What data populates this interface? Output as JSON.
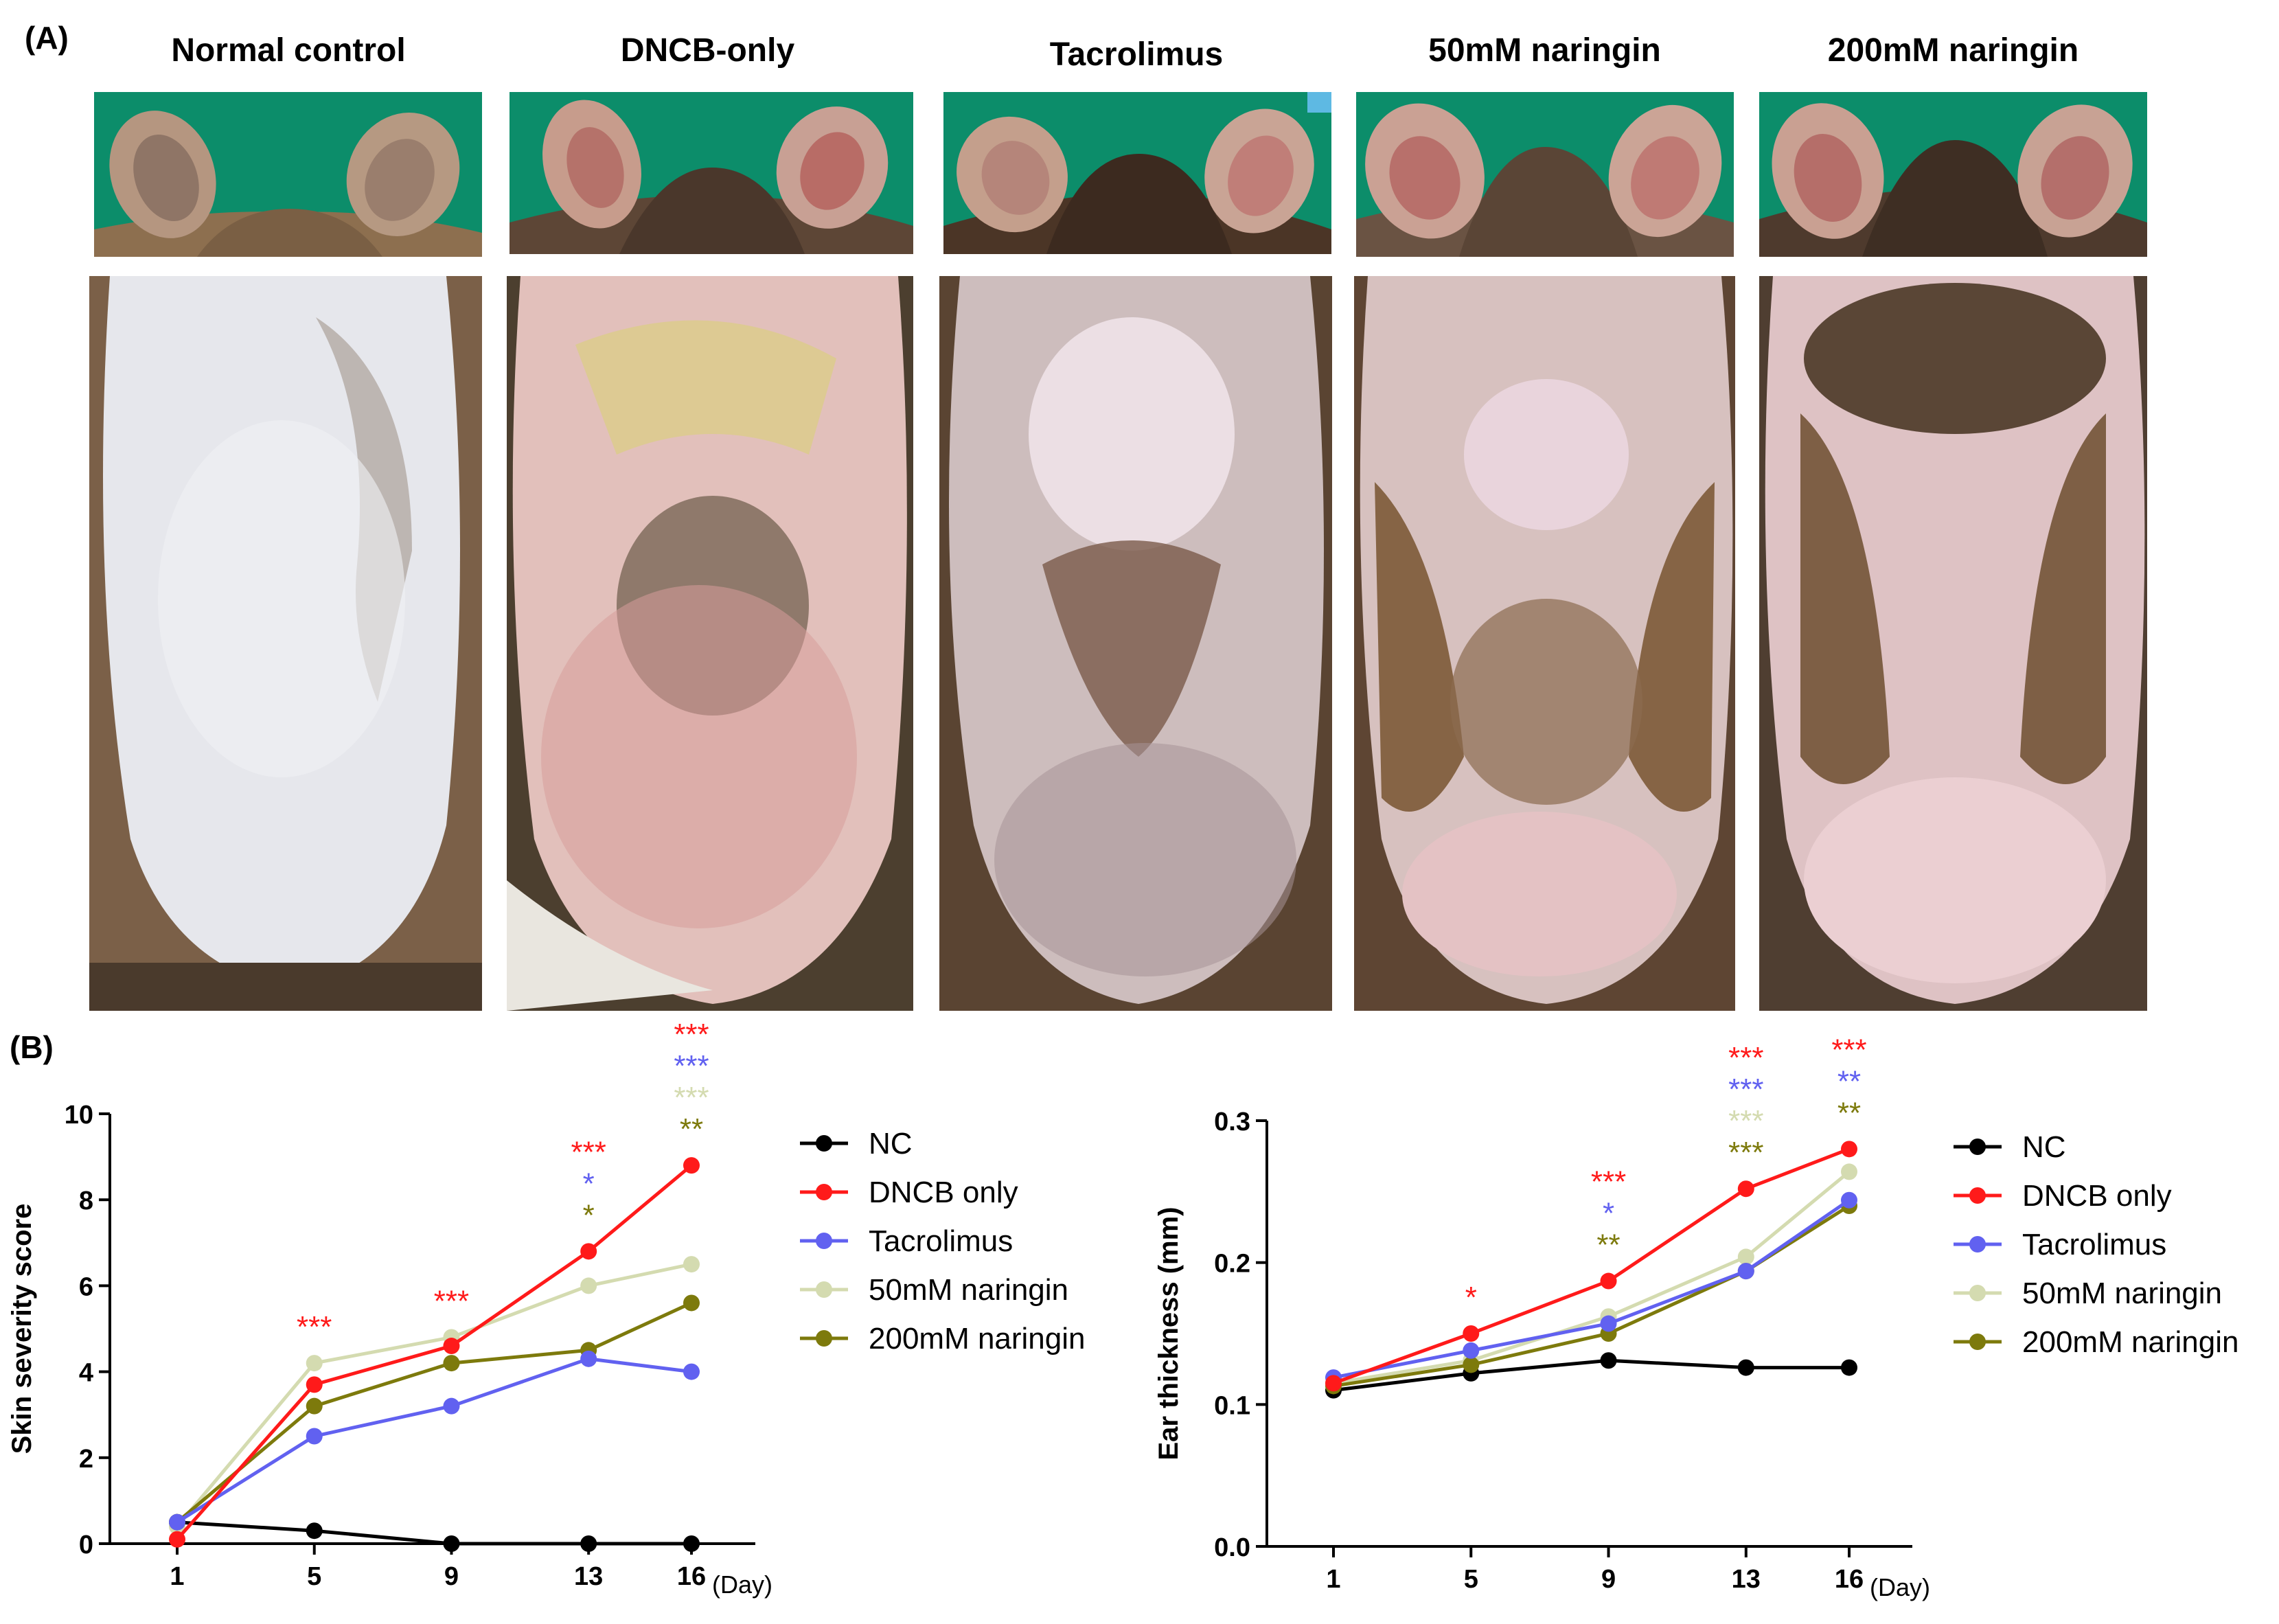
{
  "panel_a": {
    "label": "(A)",
    "groups": [
      "Normal control",
      "DNCB-only",
      "Tacrolimus",
      "50mM naringin",
      "200mM naringin"
    ]
  },
  "panel_b": {
    "label": "(B)"
  },
  "chart_data": [
    {
      "type": "line",
      "title": "",
      "xlabel": "",
      "x_unit": "(Day)",
      "ylabel": "Skin severity score",
      "x": [
        1,
        5,
        9,
        13,
        16
      ],
      "ylim": [
        0,
        10
      ],
      "yticks": [
        "0",
        "2",
        "4",
        "6",
        "8",
        "10"
      ],
      "xticks": [
        "1",
        "5",
        "9",
        "13",
        "16"
      ],
      "grid": false,
      "legend_position": "right",
      "series": [
        {
          "name": "NC",
          "color": "#000000",
          "values": [
            0.5,
            0.3,
            0.0,
            0.0,
            0.0
          ]
        },
        {
          "name": "DNCB only",
          "color": "#ff1a1a",
          "values": [
            0.1,
            3.7,
            4.6,
            6.8,
            8.8
          ]
        },
        {
          "name": "Tacrolimus",
          "color": "#6161f0",
          "values": [
            0.5,
            2.5,
            3.2,
            4.3,
            4.0
          ]
        },
        {
          "name": "50mM naringin",
          "color": "#d4dbb0",
          "values": [
            0.4,
            4.2,
            4.8,
            6.0,
            6.5
          ]
        },
        {
          "name": "200mM naringin",
          "color": "#7d7a0c",
          "values": [
            0.5,
            3.2,
            4.2,
            4.5,
            5.6
          ]
        }
      ],
      "annotations": [
        {
          "x": 5,
          "stars": [
            "***"
          ],
          "colors": [
            "#ff1a1a"
          ]
        },
        {
          "x": 9,
          "stars": [
            "***"
          ],
          "colors": [
            "#ff1a1a"
          ]
        },
        {
          "x": 13,
          "stars": [
            "***",
            "*",
            "*"
          ],
          "colors": [
            "#ff1a1a",
            "#6161f0",
            "#7d7a0c"
          ]
        },
        {
          "x": 16,
          "stars": [
            "***",
            "***",
            "***",
            "**"
          ],
          "colors": [
            "#ff1a1a",
            "#6161f0",
            "#d4dbb0",
            "#7d7a0c"
          ]
        }
      ]
    },
    {
      "type": "line",
      "title": "",
      "xlabel": "",
      "x_unit": "(Day)",
      "ylabel": "Ear thickness (mm)",
      "x": [
        1,
        5,
        9,
        13,
        16
      ],
      "ylim": [
        0,
        0.3
      ],
      "yticks": [
        "0.0",
        "0.1",
        "0.2",
        "0.3"
      ],
      "xticks": [
        "1",
        "5",
        "9",
        "13",
        "16"
      ],
      "grid": false,
      "legend_position": "right",
      "series": [
        {
          "name": "NC",
          "color": "#000000",
          "values": [
            0.11,
            0.122,
            0.131,
            0.126,
            0.126
          ]
        },
        {
          "name": "DNCB only",
          "color": "#ff1a1a",
          "values": [
            0.115,
            0.15,
            0.187,
            0.252,
            0.28
          ]
        },
        {
          "name": "Tacrolimus",
          "color": "#6161f0",
          "values": [
            0.119,
            0.138,
            0.157,
            0.194,
            0.244
          ]
        },
        {
          "name": "50mM naringin",
          "color": "#d4dbb0",
          "values": [
            0.115,
            0.131,
            0.162,
            0.204,
            0.264
          ]
        },
        {
          "name": "200mM naringin",
          "color": "#7d7a0c",
          "values": [
            0.113,
            0.128,
            0.15,
            0.194,
            0.24
          ]
        }
      ],
      "annotations": [
        {
          "x": 5,
          "stars": [
            "*"
          ],
          "colors": [
            "#ff1a1a"
          ]
        },
        {
          "x": 9,
          "stars": [
            "***",
            "*",
            "**"
          ],
          "colors": [
            "#ff1a1a",
            "#6161f0",
            "#7d7a0c"
          ]
        },
        {
          "x": 13,
          "stars": [
            "***",
            "***",
            "***",
            "***"
          ],
          "colors": [
            "#ff1a1a",
            "#6161f0",
            "#d4dbb0",
            "#7d7a0c"
          ]
        },
        {
          "x": 16,
          "stars": [
            "***",
            "**",
            "**"
          ],
          "colors": [
            "#ff1a1a",
            "#6161f0",
            "#7d7a0c"
          ]
        }
      ]
    }
  ]
}
